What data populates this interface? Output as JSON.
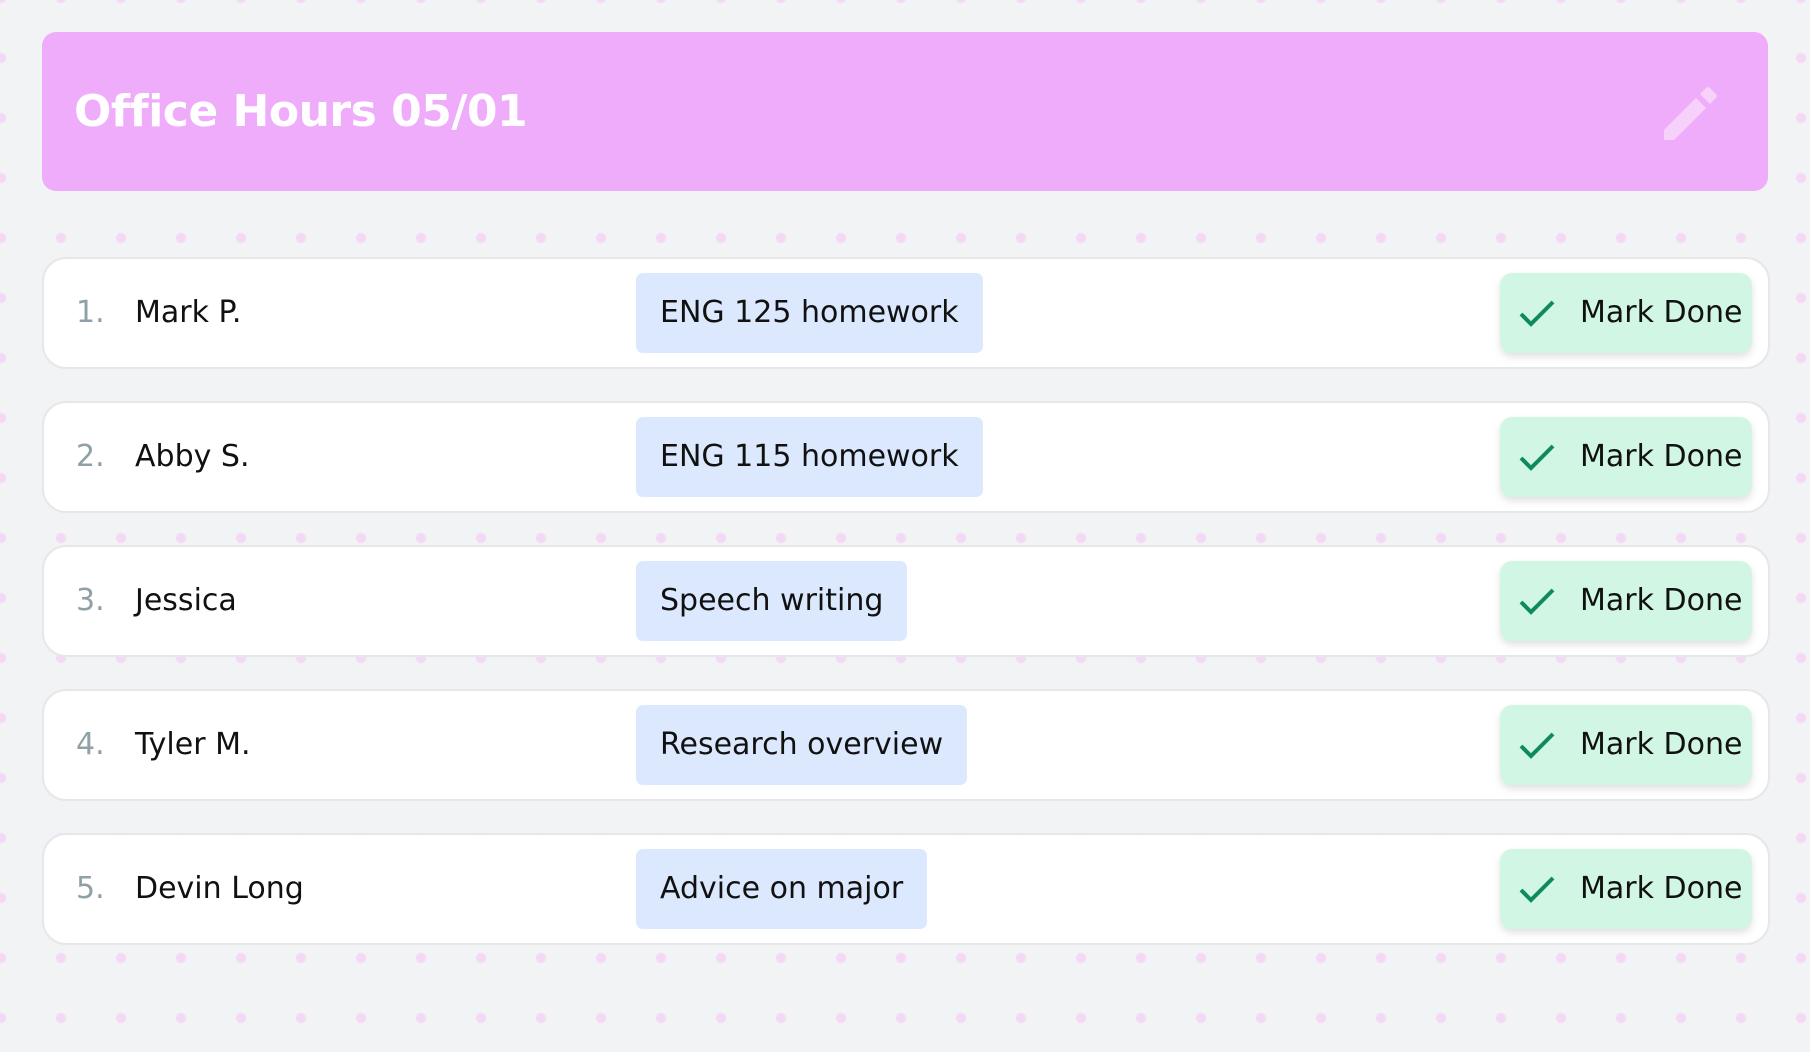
{
  "header": {
    "title": "Office Hours 05/01",
    "edit_icon": "pencil-icon"
  },
  "queue": [
    {
      "number": "1.",
      "name": "Mark P.",
      "topic": "ENG 125 homework",
      "action": "Mark Done"
    },
    {
      "number": "2.",
      "name": "Abby S.",
      "topic": "ENG 115 homework",
      "action": "Mark Done"
    },
    {
      "number": "3.",
      "name": "Jessica",
      "topic": "Speech writing",
      "action": "Mark Done"
    },
    {
      "number": "4.",
      "name": "Tyler M.",
      "topic": "Research overview",
      "action": "Mark Done"
    },
    {
      "number": "5.",
      "name": "Devin Long",
      "topic": "Advice on major",
      "action": "Mark Done"
    }
  ],
  "colors": {
    "header": "#efacfa",
    "tag": "#dbe8fd",
    "done_button": "#d1f7e4",
    "check": "#0f8a5f"
  }
}
